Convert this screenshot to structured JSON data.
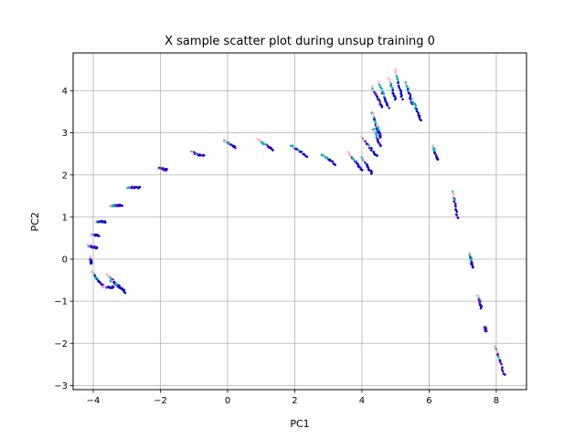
{
  "chart_data": {
    "type": "scatter",
    "title": "X sample scatter plot during unsup training 0",
    "xlabel": "PC1",
    "ylabel": "PC2",
    "xlim": [
      -4.6,
      8.9
    ],
    "ylim": [
      -3.1,
      4.9
    ],
    "xticks": [
      -4,
      -2,
      0,
      2,
      4,
      6,
      8
    ],
    "yticks": [
      -3,
      -2,
      -1,
      0,
      1,
      2,
      3,
      4
    ],
    "grid": true,
    "colors": [
      "#0000cc",
      "#00b5b5",
      "#ffb6c1",
      "#7a00cc"
    ],
    "clusters": [
      {
        "x0": 5.0,
        "y0": 4.5,
        "x1": 5.2,
        "y1": 3.8
      },
      {
        "x0": 5.3,
        "y0": 4.2,
        "x1": 5.5,
        "y1": 3.7
      },
      {
        "x0": 4.5,
        "y0": 4.2,
        "x1": 4.8,
        "y1": 3.6
      },
      {
        "x0": 4.3,
        "y0": 4.1,
        "x1": 4.6,
        "y1": 3.6
      },
      {
        "x0": 4.8,
        "y0": 4.3,
        "x1": 5.0,
        "y1": 3.8
      },
      {
        "x0": 5.5,
        "y0": 3.8,
        "x1": 5.75,
        "y1": 3.3
      },
      {
        "x0": 4.3,
        "y0": 3.5,
        "x1": 4.5,
        "y1": 3.0
      },
      {
        "x0": 4.35,
        "y0": 3.1,
        "x1": 4.55,
        "y1": 2.7
      },
      {
        "x0": 4.45,
        "y0": 3.2,
        "x1": 4.55,
        "y1": 2.9
      },
      {
        "x0": 4.0,
        "y0": 2.9,
        "x1": 4.45,
        "y1": 2.45
      },
      {
        "x0": 6.1,
        "y0": 2.7,
        "x1": 6.25,
        "y1": 2.35
      },
      {
        "x0": 3.6,
        "y0": 2.55,
        "x1": 4.0,
        "y1": 2.1
      },
      {
        "x0": 4.0,
        "y0": 2.4,
        "x1": 4.3,
        "y1": 2.05
      },
      {
        "x0": 2.8,
        "y0": 2.5,
        "x1": 3.2,
        "y1": 2.25
      },
      {
        "x0": 1.9,
        "y0": 2.7,
        "x1": 2.35,
        "y1": 2.45
      },
      {
        "x0": 0.9,
        "y0": 2.85,
        "x1": 1.35,
        "y1": 2.6
      },
      {
        "x0": -0.1,
        "y0": 2.8,
        "x1": 0.25,
        "y1": 2.65
      },
      {
        "x0": -1.1,
        "y0": 2.55,
        "x1": -0.7,
        "y1": 2.45
      },
      {
        "x0": -2.1,
        "y0": 2.17,
        "x1": -1.8,
        "y1": 2.12
      },
      {
        "x0": -3.0,
        "y0": 1.7,
        "x1": -2.6,
        "y1": 1.7
      },
      {
        "x0": -3.5,
        "y0": 1.27,
        "x1": -3.15,
        "y1": 1.27
      },
      {
        "x0": -3.9,
        "y0": 0.9,
        "x1": -3.65,
        "y1": 0.88
      },
      {
        "x0": -4.05,
        "y0": 0.58,
        "x1": -3.85,
        "y1": 0.56
      },
      {
        "x0": -4.15,
        "y0": 0.33,
        "x1": -3.9,
        "y1": 0.27
      },
      {
        "x0": -4.1,
        "y0": 0.05,
        "x1": -4.05,
        "y1": -0.1
      },
      {
        "x0": -4.05,
        "y0": -0.3,
        "x1": -3.7,
        "y1": -0.65
      },
      {
        "x0": -3.6,
        "y0": -0.35,
        "x1": -3.05,
        "y1": -0.8
      },
      {
        "x0": -3.5,
        "y0": -0.5,
        "x1": -3.1,
        "y1": -0.72
      },
      {
        "x0": -3.7,
        "y0": -0.65,
        "x1": -3.4,
        "y1": -0.67
      },
      {
        "x0": 6.7,
        "y0": 1.6,
        "x1": 6.85,
        "y1": 1.0
      },
      {
        "x0": 7.2,
        "y0": 0.15,
        "x1": 7.3,
        "y1": -0.2
      },
      {
        "x0": 7.45,
        "y0": -0.85,
        "x1": 7.55,
        "y1": -1.15
      },
      {
        "x0": 7.65,
        "y0": -1.6,
        "x1": 7.7,
        "y1": -1.7
      },
      {
        "x0": 7.95,
        "y0": -2.05,
        "x1": 8.25,
        "y1": -2.75
      }
    ]
  }
}
